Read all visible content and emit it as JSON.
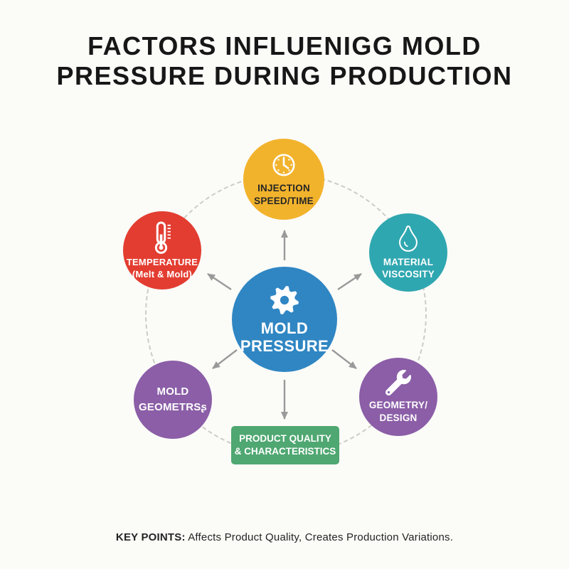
{
  "title": {
    "line1": "FACTORS INFLUENIGG MOLD",
    "line2": "PRESSURE DURING PRODUCTION"
  },
  "hub": {
    "line1": "MOLD",
    "line2": "PRESSURE",
    "color": "#2f86c3",
    "text_color": "#ffffff",
    "icon": "gear-icon"
  },
  "factors": [
    {
      "id": "injection-speed-time",
      "lines": [
        "INJECTION",
        "SPEED/TIME"
      ],
      "color": "#f2b32c",
      "text_color": "#262626",
      "icon": "clock-icon"
    },
    {
      "id": "temperature",
      "lines": [
        "TEMPERATURE",
        "(Melt & Mold)"
      ],
      "color": "#e33d31",
      "text_color": "#ffffff",
      "icon": "thermometer-icon"
    },
    {
      "id": "material-viscosity",
      "lines": [
        "MATERIAL",
        "VISCOSITY"
      ],
      "color": "#2fa7b0",
      "text_color": "#ffffff",
      "icon": "droplet-icon"
    },
    {
      "id": "mold-geometry",
      "lines": [
        "MOLD",
        "GEOMETRSʂ"
      ],
      "color": "#8b5ea7",
      "text_color": "#ffffff",
      "icon": null
    },
    {
      "id": "geometry-design",
      "lines": [
        "GEOMETRY/",
        "DESIGN"
      ],
      "color": "#8b5ea7",
      "text_color": "#ffffff",
      "icon": "wrench-icon"
    }
  ],
  "outcome": {
    "line1": "PRODUCT QUALITY",
    "line2": "& CHARACTERISTICS",
    "color": "#4fa771",
    "text_color": "#ffffff"
  },
  "key_points": {
    "label": "KEY POINTS:",
    "text": " Affects Product Quality, Creates Production Variations."
  },
  "palette": {
    "arrow_color": "#9a9a9a",
    "ring_color": "#cdcdc6",
    "background": "#fbfbf8",
    "title_color": "#171717"
  }
}
